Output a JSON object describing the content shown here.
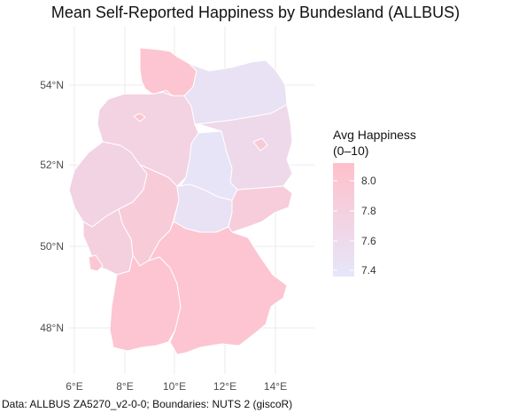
{
  "title": "Mean Self-Reported Happiness by Bundesland (ALLBUS)",
  "caption": "Data: ALLBUS ZA5270_v2-0-0; Boundaries: NUTS 2 (giscoR)",
  "axes": {
    "lat_labels": [
      "48°N",
      "50°N",
      "52°N",
      "54°N"
    ],
    "lon_labels": [
      "6°E",
      "8°E",
      "10°E",
      "12°E",
      "14°E"
    ]
  },
  "legend": {
    "title_line1": "Avg Happiness",
    "title_line2": "(0–10)",
    "ticks": [
      "8.0",
      "7.8",
      "7.6",
      "7.4"
    ],
    "color_high": "#FFC0CB",
    "color_low": "#E6E6FA"
  },
  "chart_data": {
    "type": "choropleth",
    "title": "Mean Self-Reported Happiness by Bundesland (ALLBUS)",
    "variable": "Avg Happiness (0–10)",
    "legend_range": [
      7.35,
      8.1
    ],
    "x_range_degE": [
      5.5,
      15.5
    ],
    "y_range_degN": [
      47.0,
      55.3
    ],
    "regions": [
      {
        "name": "Schleswig-Holstein",
        "value": 8.0
      },
      {
        "name": "Hamburg",
        "value": 8.0
      },
      {
        "name": "Bremen",
        "value": 8.05
      },
      {
        "name": "Niedersachsen",
        "value": 7.75
      },
      {
        "name": "Mecklenburg-Vorpommern",
        "value": 7.45
      },
      {
        "name": "Berlin",
        "value": 7.9
      },
      {
        "name": "Brandenburg",
        "value": 7.6
      },
      {
        "name": "Sachsen-Anhalt",
        "value": 7.38
      },
      {
        "name": "Nordrhein-Westfalen",
        "value": 7.72
      },
      {
        "name": "Hessen",
        "value": 7.88
      },
      {
        "name": "Thüringen",
        "value": 7.45
      },
      {
        "name": "Sachsen",
        "value": 7.85
      },
      {
        "name": "Rheinland-Pfalz",
        "value": 7.78
      },
      {
        "name": "Saarland",
        "value": 7.95
      },
      {
        "name": "Baden-Württemberg",
        "value": 8.0
      },
      {
        "name": "Bayern",
        "value": 8.0
      }
    ]
  }
}
